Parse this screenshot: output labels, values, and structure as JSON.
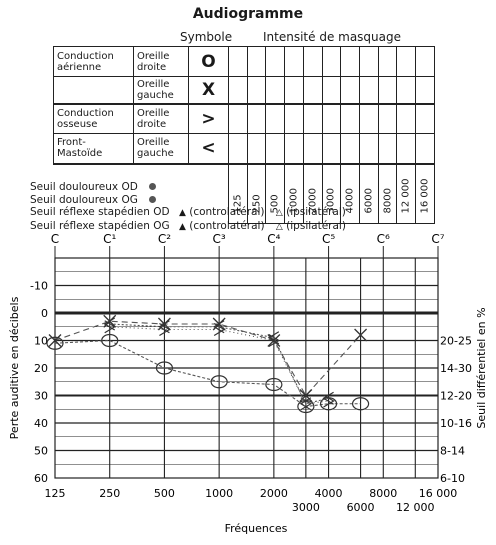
{
  "title": "Audiogramme",
  "table": {
    "symbol_header": "Symbole",
    "masking_header": "Intensité de masquage",
    "rows": [
      {
        "group": "Conduction aérienne",
        "ear": "Oreille droite",
        "symbol": "O",
        "group_lines": [
          "Conduction",
          "aérienne"
        ],
        "ear_lines": [
          "Oreille",
          "droite"
        ]
      },
      {
        "group": "",
        "ear": "Oreille gauche",
        "symbol": "X",
        "group_lines": [
          "",
          ""
        ],
        "ear_lines": [
          "Oreille",
          "gauche"
        ]
      },
      {
        "group": "Conduction osseuse",
        "ear": "Oreille droite",
        "symbol": ">",
        "group_lines": [
          "Conduction",
          "osseuse"
        ],
        "ear_lines": [
          "Oreille",
          "droite"
        ]
      },
      {
        "group": "Front-Mastoïde",
        "ear": "Oreille gauche",
        "symbol": "<",
        "group_lines": [
          "Front-",
          "Mastoïde"
        ],
        "ear_lines": [
          "Oreille",
          "gauche"
        ]
      }
    ],
    "freq_columns": [
      "125",
      "250",
      "500",
      "1000",
      "2000",
      "3000",
      "4000",
      "6000",
      "8000",
      "12 000",
      "16 000"
    ]
  },
  "thresholds": {
    "pain_od": "Seuil douloureux OD",
    "pain_og": "Seuil douloureux OG",
    "reflex_od": "Seuil réflexe stapédien OD",
    "reflex_og": "Seuil réflexe stapédien OG",
    "contralateral": "(controlatéral)",
    "ipsilateral": "(ipsilatéral)"
  },
  "chart_data": {
    "type": "line",
    "title": "",
    "xlabel": "Fréquences",
    "ylabel": "Perte auditive en décibels",
    "y2label": "Seuil différentiel en %",
    "xscale": "log",
    "x_ticks_main": [
      "125",
      "250",
      "500",
      "1000",
      "2000",
      "4000",
      "8000",
      "16 000"
    ],
    "x_ticks_sub": [
      "3000",
      "6000",
      "12 000"
    ],
    "octave_labels": [
      "C",
      "C¹",
      "C²",
      "C³",
      "C⁴",
      "C⁵",
      "C⁶",
      "C⁷"
    ],
    "y_ticks": [
      "-10",
      "0",
      "10",
      "20",
      "30",
      "40",
      "50",
      "60"
    ],
    "ylim": [
      -20,
      60
    ],
    "y_inverted": true,
    "y2_ticks": [
      "20-25",
      "14-30",
      "12-20",
      "10-16",
      "8-14",
      "6-10"
    ],
    "grid": true,
    "series": [
      {
        "marker": "O",
        "x": [
          125,
          250,
          500,
          1000,
          2000,
          3000,
          4000,
          6000
        ],
        "y": [
          11,
          10,
          20,
          25,
          26,
          34,
          33,
          33
        ]
      },
      {
        "marker": "X",
        "x": [
          125,
          250,
          500,
          1000,
          2000,
          3000,
          6000
        ],
        "y": [
          10,
          3,
          4,
          4,
          10,
          30,
          8
        ]
      },
      {
        "marker": ">",
        "x": [
          250,
          500,
          1000,
          2000,
          3000,
          4000
        ],
        "y": [
          5,
          6,
          6,
          10,
          33,
          32
        ]
      },
      {
        "marker": "<",
        "x": [
          250,
          500,
          1000,
          2000,
          3000,
          4000
        ],
        "y": [
          4,
          5,
          5,
          9,
          33,
          31
        ]
      }
    ]
  }
}
